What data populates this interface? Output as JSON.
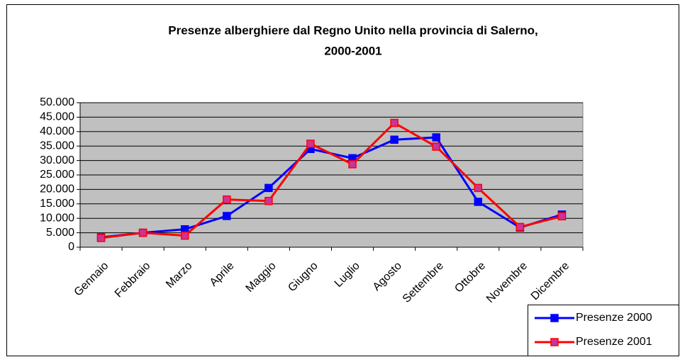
{
  "chart_data": {
    "type": "line",
    "title": [
      "Presenze alberghiere dal Regno Unito nella provincia di Salerno,",
      "2000-2001"
    ],
    "categories": [
      "Gennaio",
      "Febbraio",
      "Marzo",
      "Aprile",
      "Maggio",
      "Giugno",
      "Luglio",
      "Agosto",
      "Settembre",
      "Ottobre",
      "Novembre",
      "Dicembre"
    ],
    "series": [
      {
        "name": "Presenze 2000",
        "color": "#0000ff",
        "values": [
          3400,
          5000,
          6200,
          10800,
          20500,
          34000,
          30800,
          37200,
          38000,
          15700,
          6800,
          11300
        ]
      },
      {
        "name": "Presenze 2001",
        "color": "#ff0000",
        "marker_color": "#cc3399",
        "values": [
          3200,
          5000,
          4000,
          16500,
          16000,
          35800,
          28700,
          43000,
          34800,
          20500,
          7000,
          10700
        ]
      }
    ],
    "ylim": [
      0,
      50000
    ],
    "yticks": [
      0,
      {
        "value": 5000,
        "label": "5.000"
      },
      {
        "value": 10000,
        "label": "10.000"
      },
      {
        "value": 15000,
        "label": "15.000"
      },
      {
        "value": 20000,
        "label": "20.000"
      },
      {
        "value": 25000,
        "label": "25.000"
      },
      {
        "value": 30000,
        "label": "30.000"
      },
      {
        "value": 35000,
        "label": "35.000"
      },
      {
        "value": 40000,
        "label": "40.000"
      },
      {
        "value": 45000,
        "label": "45.000"
      },
      {
        "value": 50000,
        "label": "50.000"
      }
    ],
    "grid": true,
    "plot_background": "#c0c0c0",
    "legend": "lower right"
  }
}
